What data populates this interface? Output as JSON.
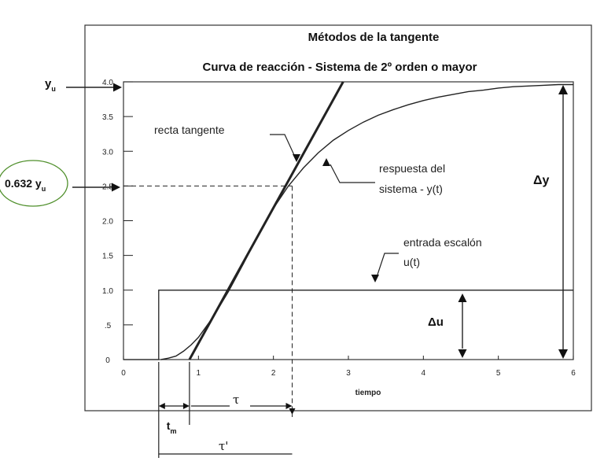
{
  "chart_data": {
    "type": "line",
    "title": "Métodos de la tangente",
    "subtitle": "Curva de reacción - Sistema de 2º orden o mayor",
    "xlabel": "tiempo",
    "ylabel": "",
    "xlim": [
      0,
      6
    ],
    "ylim": [
      0,
      4
    ],
    "x_ticks": [
      "0",
      "1",
      "2",
      "3",
      "4",
      "5",
      "6"
    ],
    "y_ticks": [
      "0",
      ".5",
      "1.0",
      "1.5",
      "2.0",
      "2.5",
      "3.0",
      "3.5",
      "4.0"
    ],
    "grid": false,
    "series": [
      {
        "name": "respuesta del sistema - y(t)",
        "kind": "response",
        "x": [
          0.5,
          0.6,
          0.7,
          0.8,
          0.9,
          1.0,
          1.2,
          1.4,
          1.6,
          1.8,
          2.0,
          2.2,
          2.4,
          2.6,
          2.8,
          3.0,
          3.2,
          3.4,
          3.6,
          3.8,
          4.0,
          4.2,
          4.4,
          4.6,
          4.8,
          5.0,
          5.2,
          5.4,
          5.6,
          5.8,
          6.0
        ],
        "y": [
          0.0,
          0.02,
          0.05,
          0.12,
          0.21,
          0.32,
          0.62,
          0.98,
          1.38,
          1.8,
          2.18,
          2.5,
          2.76,
          2.98,
          3.16,
          3.3,
          3.42,
          3.52,
          3.6,
          3.67,
          3.73,
          3.78,
          3.82,
          3.86,
          3.88,
          3.91,
          3.93,
          3.94,
          3.95,
          3.96,
          3.96
        ]
      },
      {
        "name": "recta tangente",
        "kind": "tangent",
        "x": [
          0.88,
          2.93
        ],
        "y": [
          0.0,
          4.0
        ]
      },
      {
        "name": "entrada escalón u(t)",
        "kind": "step",
        "x": [
          0.0,
          0.47,
          0.47,
          6.0
        ],
        "y": [
          0.0,
          0.0,
          1.0,
          1.0
        ]
      }
    ],
    "annotations": {
      "tangent_label": "recta tangente",
      "response_label_1": "respuesta del",
      "response_label_2": "sistema - y(t)",
      "step_label_1": "entrada escalón",
      "step_label_2": "u(t)",
      "yu_label": "y",
      "yu_sub": "u",
      "yu632_label": "0.632 y",
      "yu632_sub": "u",
      "delta_y": "Δy",
      "delta_u": "Δu",
      "tau": "τ",
      "tau_prime": "τ'",
      "tm_label": "t",
      "tm_sub": "m"
    },
    "key_values": {
      "yu": 4.0,
      "y632": 2.5,
      "t_start": 0.47,
      "t_m_end": 0.88,
      "t_632": 2.25,
      "u_level": 1.0
    }
  }
}
